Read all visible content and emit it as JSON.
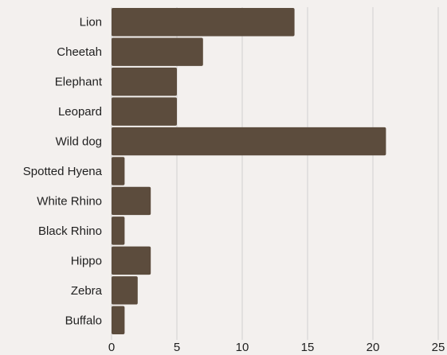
{
  "chart_data": {
    "type": "bar",
    "orientation": "horizontal",
    "categories": [
      "Lion",
      "Cheetah",
      "Elephant",
      "Leopard",
      "Wild dog",
      "Spotted Hyena",
      "White Rhino",
      "Black Rhino",
      "Hippo",
      "Zebra",
      "Buffalo"
    ],
    "values": [
      14,
      7,
      5,
      5,
      21,
      1,
      3,
      1,
      3,
      2,
      1
    ],
    "xlim": [
      0,
      25
    ],
    "xticks": [
      0,
      5,
      10,
      15,
      20,
      25
    ],
    "grid": "vertical",
    "bar_color": "#5c4c3d",
    "grid_color": "#d0d0d0",
    "background": "#f3f0ee"
  }
}
